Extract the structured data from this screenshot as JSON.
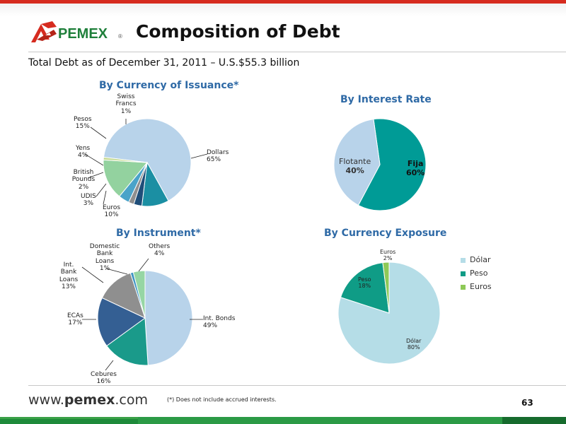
{
  "header": {
    "brand": "PEMEX",
    "title": "Composition of Debt",
    "subtitle": "Total Debt as of December 31, 2011 – U.S.$55.3 billion"
  },
  "footer": {
    "website_prefix": "www.",
    "website_bold": "pemex",
    "website_suffix": ".com",
    "footnote": "(*) Does not include accrued interests.",
    "page_number": "63"
  },
  "colors": {
    "brand_red": "#d62b1f",
    "brand_green": "#1e8a3a",
    "title_blue": "#2f6aa6"
  },
  "chart_data": [
    {
      "type": "pie",
      "title": "By Currency of Issuance*",
      "slices": [
        {
          "name": "Dollars",
          "value": 65,
          "label": "65%",
          "color": "#b8d3ea"
        },
        {
          "name": "Euros",
          "value": 10,
          "label": "10%",
          "color": "#1b8fa3"
        },
        {
          "name": "UDIS",
          "value": 3,
          "label": "3%",
          "color": "#1f4e79"
        },
        {
          "name": "British Pounds",
          "value": 2,
          "label": "2%",
          "color": "#8f8f8f"
        },
        {
          "name": "Yens",
          "value": 4,
          "label": "4%",
          "color": "#4aa3c9"
        },
        {
          "name": "Pesos",
          "value": 15,
          "label": "15%",
          "color": "#93d29f"
        },
        {
          "name": "Swiss Francs",
          "value": 1,
          "label": "1%",
          "color": "#c8dc98"
        }
      ]
    },
    {
      "type": "pie",
      "title": "By Interest Rate",
      "slices": [
        {
          "name": "Fija",
          "value": 60,
          "label": "60%",
          "color": "#009b96"
        },
        {
          "name": "Flotante",
          "value": 40,
          "label": "40%",
          "color": "#b8d3ea"
        }
      ]
    },
    {
      "type": "pie",
      "title": "By Instrument*",
      "slices": [
        {
          "name": "Int. Bonds",
          "value": 49,
          "label": "49%",
          "color": "#b8d3ea"
        },
        {
          "name": "Cebures",
          "value": 16,
          "label": "16%",
          "color": "#1a9a8a"
        },
        {
          "name": "ECAs",
          "value": 17,
          "label": "17%",
          "color": "#345f93"
        },
        {
          "name": "Int. Bank Loans",
          "value": 13,
          "label": "13%",
          "color": "#8f8f8f"
        },
        {
          "name": "Domestic Bank Loans",
          "value": 1,
          "label": "1%",
          "color": "#3f95c4"
        },
        {
          "name": "Others",
          "value": 4,
          "label": "4%",
          "color": "#96d6a4"
        }
      ]
    },
    {
      "type": "pie",
      "title": "By Currency Exposure",
      "legend": "right",
      "slices": [
        {
          "name": "Dólar",
          "value": 80,
          "label": "80%",
          "color": "#b5dde7"
        },
        {
          "name": "Peso",
          "value": 18,
          "label": "18%",
          "color": "#0f9c86"
        },
        {
          "name": "Euros",
          "value": 2,
          "label": "2%",
          "color": "#8ec957"
        }
      ]
    }
  ]
}
